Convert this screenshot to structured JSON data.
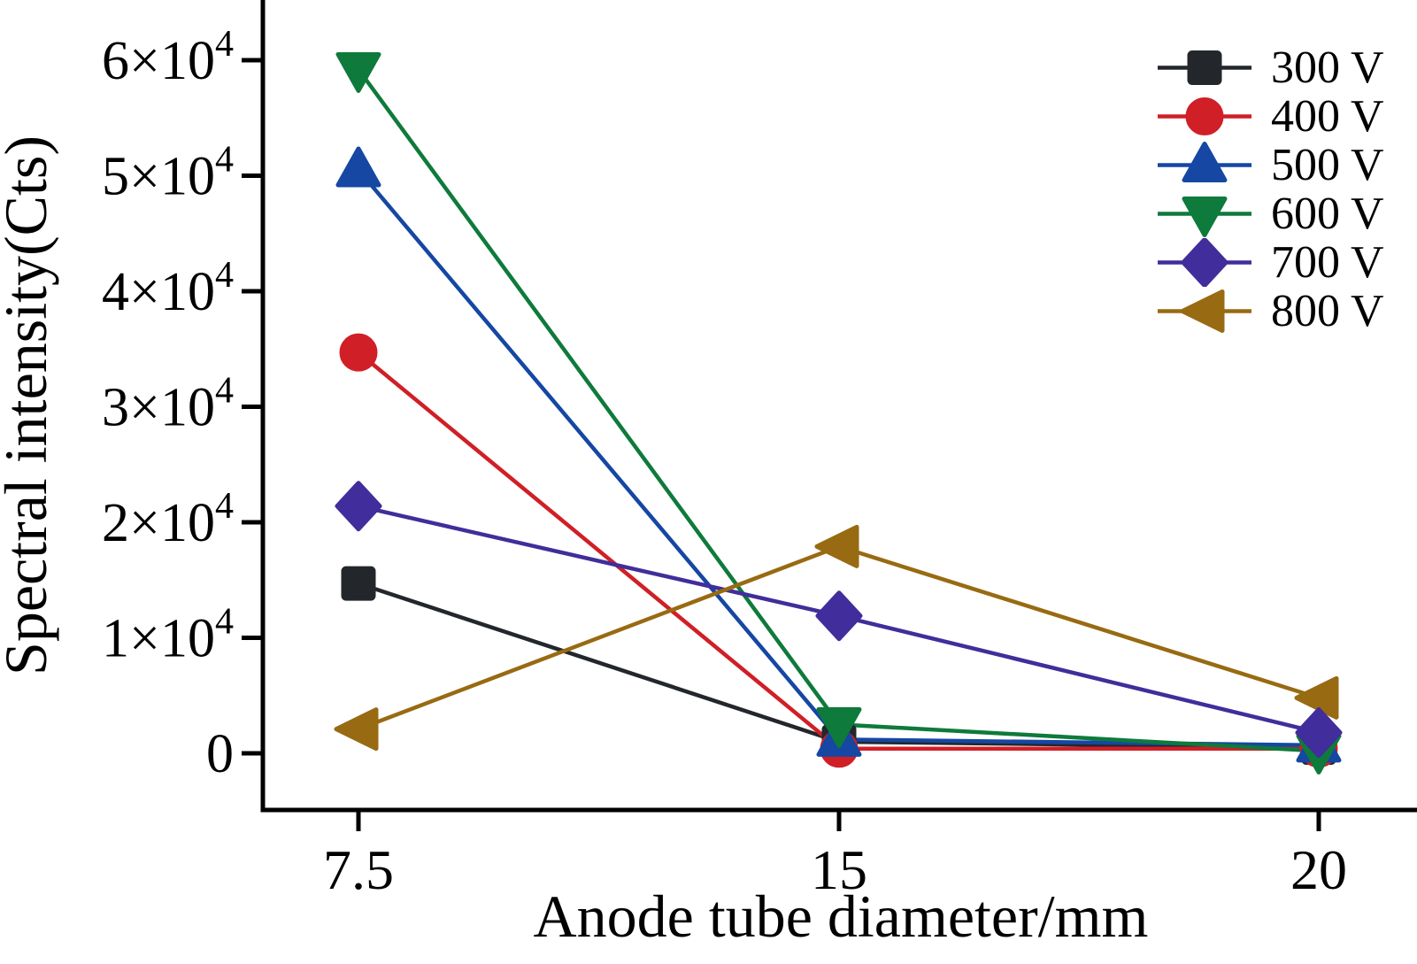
{
  "figure": {
    "background_color": "#ffffff",
    "text_color": "#000000"
  },
  "chart_data": {
    "type": "line",
    "title": "",
    "xlabel": "Anode tube diameter/mm",
    "ylabel": "Spectral intensity(Cts)",
    "x_categories": [
      "7.5",
      "15",
      "20"
    ],
    "x_values": [
      7.5,
      15,
      20
    ],
    "x_axis_spacing": "categorical-equal",
    "ylim": [
      -5000,
      65500
    ],
    "grid": false,
    "legend_position": "top-right",
    "y_ticks": [
      {
        "value": 0,
        "label": "0"
      },
      {
        "value": 10000,
        "label": "1×10^4"
      },
      {
        "value": 20000,
        "label": "2×10^4"
      },
      {
        "value": 30000,
        "label": "3×10^4"
      },
      {
        "value": 40000,
        "label": "4×10^4"
      },
      {
        "value": 50000,
        "label": "5×10^4"
      },
      {
        "value": 60000,
        "label": "6×10^4"
      }
    ],
    "series": [
      {
        "name": "300 V",
        "color": "#23272c",
        "marker": "square",
        "values": [
          14700,
          1000,
          500
        ]
      },
      {
        "name": "400 V",
        "color": "#d01f26",
        "marker": "circle",
        "values": [
          34700,
          400,
          400
        ]
      },
      {
        "name": "500 V",
        "color": "#1547a3",
        "marker": "triangle-up",
        "values": [
          50500,
          1200,
          700
        ]
      },
      {
        "name": "600 V",
        "color": "#0e7a3b",
        "marker": "triangle-down",
        "values": [
          59200,
          2500,
          200
        ]
      },
      {
        "name": "700 V",
        "color": "#412d9b",
        "marker": "diamond",
        "values": [
          21400,
          11900,
          1800
        ]
      },
      {
        "name": "800 V",
        "color": "#986a12",
        "marker": "triangle-left",
        "values": [
          2100,
          17900,
          4800
        ]
      }
    ]
  }
}
